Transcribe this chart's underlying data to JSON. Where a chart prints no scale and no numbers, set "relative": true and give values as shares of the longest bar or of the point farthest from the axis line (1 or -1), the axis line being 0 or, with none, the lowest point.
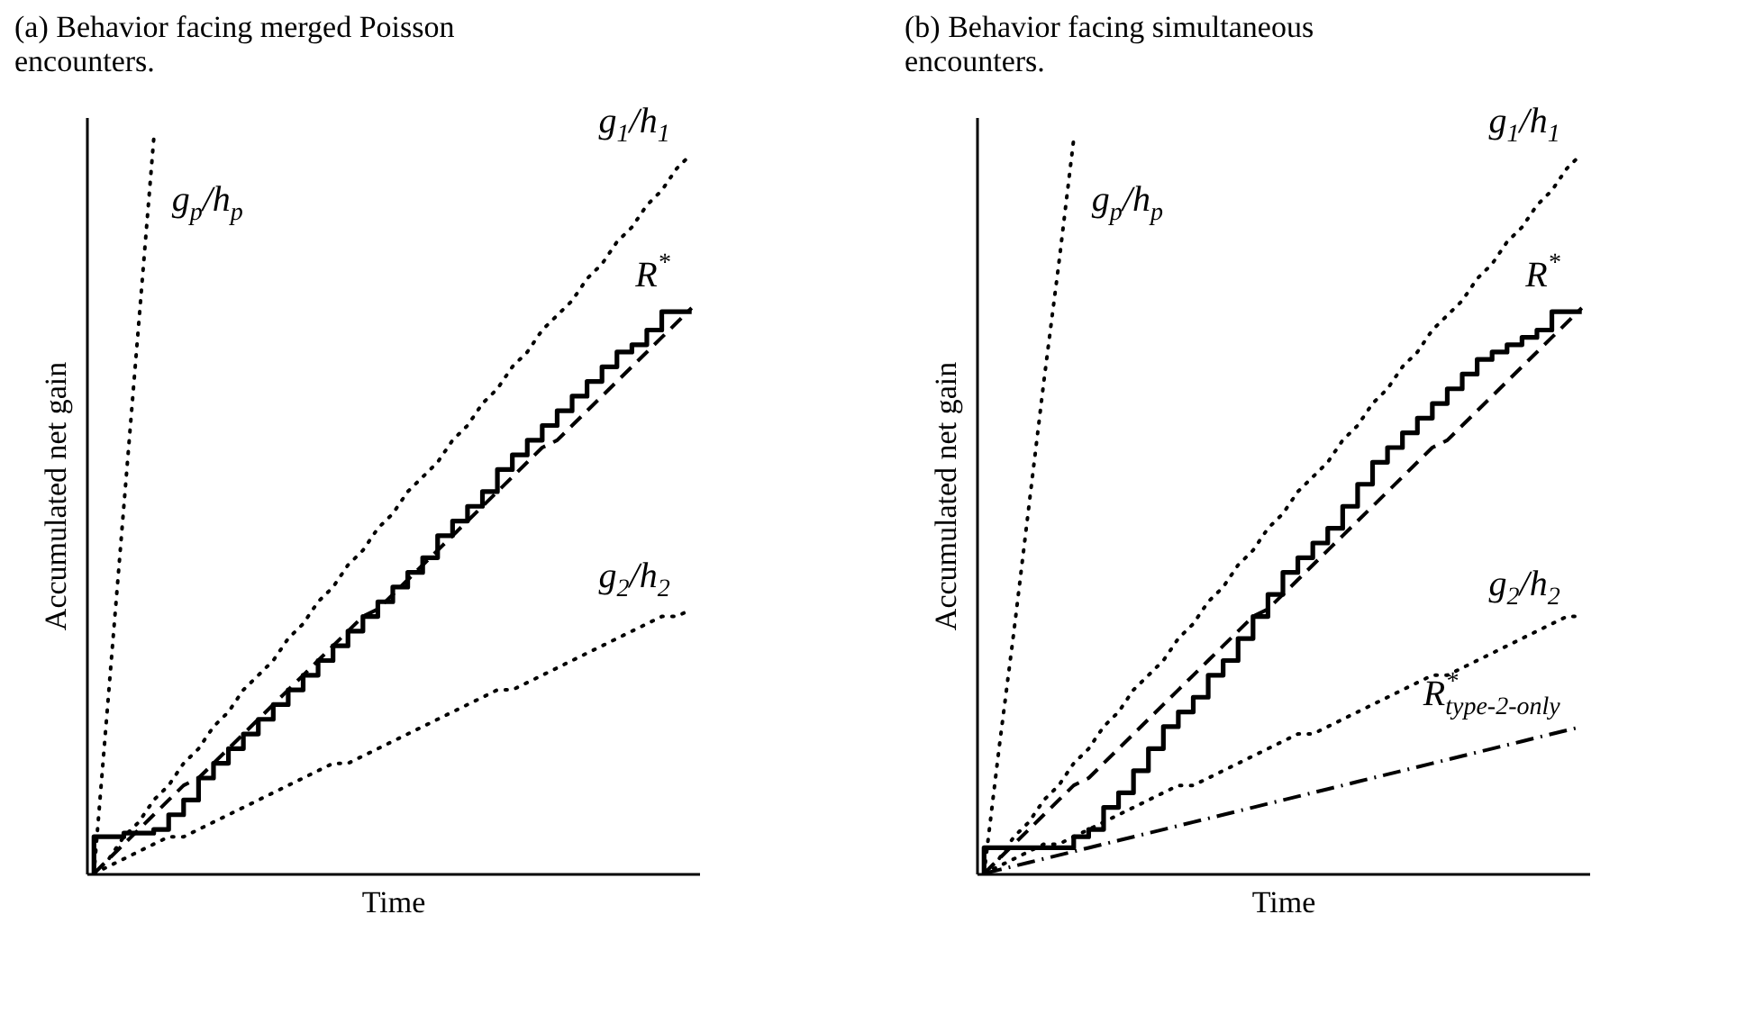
{
  "chart_data": [
    {
      "type": "line",
      "title": "(a) Behavior facing merged Poisson encounters.",
      "xlabel": "Time",
      "ylabel": "Accumulated net gain",
      "relative": true,
      "grid": false,
      "marker": "none",
      "categories": [
        null,
        null,
        null,
        null,
        null,
        null,
        null,
        null,
        null,
        null,
        null,
        null,
        null,
        null,
        null,
        null,
        null,
        null,
        null,
        null,
        null,
        null,
        null,
        null,
        null,
        null,
        null,
        null,
        null,
        null,
        null,
        null,
        null,
        null,
        null,
        null,
        null,
        null,
        null,
        null,
        null
      ],
      "series": [
        {
          "name": "g$_{p}$/h$_{p}$",
          "color": "#000000",
          "line_style": "dotted",
          "values": [
            0,
            0.25,
            0.5,
            0.75,
            1,
            null,
            null,
            null,
            null,
            null,
            null,
            null,
            null,
            null,
            null,
            null,
            null,
            null,
            null,
            null,
            null,
            null,
            null,
            null,
            null,
            null,
            null,
            null,
            null,
            null,
            null,
            null,
            null,
            null,
            null,
            null,
            null,
            null,
            null,
            null,
            null
          ]
        },
        {
          "name": "g$_{1}$/h$_{1}$",
          "color": "#000000",
          "line_style": "dotted",
          "values": [
            0,
            0.02,
            0.05,
            0.07,
            0.1,
            0.12,
            0.15,
            0.17,
            0.2,
            0.22,
            0.25,
            0.27,
            0.29,
            0.32,
            0.34,
            0.37,
            0.39,
            0.42,
            0.44,
            0.47,
            0.49,
            0.52,
            0.54,
            0.56,
            0.59,
            0.61,
            0.64,
            0.66,
            0.69,
            0.71,
            0.74,
            0.76,
            0.78,
            0.81,
            0.83,
            0.86,
            0.88,
            0.91,
            0.93,
            0.96,
            0.98
          ]
        },
        {
          "name": "g$_{2}$/h$_{2}$",
          "color": "#000000",
          "line_style": "dotted",
          "values": [
            0,
            0.01,
            0.02,
            0.03,
            0.04,
            0.05,
            0.05,
            0.06,
            0.07,
            0.08,
            0.09,
            0.1,
            0.11,
            0.12,
            0.13,
            0.14,
            0.15,
            0.15,
            0.16,
            0.17,
            0.18,
            0.19,
            0.2,
            0.21,
            0.22,
            0.23,
            0.24,
            0.25,
            0.25,
            0.26,
            0.27,
            0.28,
            0.29,
            0.3,
            0.31,
            0.32,
            0.33,
            0.34,
            0.35,
            0.35,
            0.36
          ]
        },
        {
          "name": "R$^{*}$",
          "color": "#000000",
          "line_style": "dashed",
          "values": [
            0,
            0.02,
            0.04,
            0.06,
            0.08,
            0.1,
            0.12,
            0.13,
            0.15,
            0.17,
            0.19,
            0.21,
            0.23,
            0.25,
            0.27,
            0.29,
            0.31,
            0.33,
            0.35,
            0.36,
            0.38,
            0.4,
            0.42,
            0.44,
            0.46,
            0.48,
            0.5,
            0.52,
            0.54,
            0.56,
            0.58,
            0.59,
            0.61,
            0.63,
            0.65,
            0.67,
            0.69,
            0.71,
            0.73,
            0.75,
            0.77
          ]
        },
        {
          "type": "step",
          "color": "#000000",
          "line_style": "solid",
          "values": [
            0,
            0.05,
            0.05,
            0.055,
            0.055,
            0.06,
            0.08,
            0.1,
            0.13,
            0.15,
            0.17,
            0.19,
            0.21,
            0.23,
            0.25,
            0.27,
            0.29,
            0.31,
            0.33,
            0.35,
            0.37,
            0.39,
            0.41,
            0.43,
            0.46,
            0.48,
            0.5,
            0.52,
            0.55,
            0.57,
            0.59,
            0.61,
            0.63,
            0.65,
            0.67,
            0.69,
            0.71,
            0.72,
            0.74,
            0.765,
            0.765
          ]
        }
      ]
    },
    {
      "type": "line",
      "title": "(b) Behavior facing simultaneous encounters.",
      "xlabel": "Time",
      "ylabel": "Accumulated net gain",
      "relative": true,
      "grid": false,
      "marker": "none",
      "categories": [
        null,
        null,
        null,
        null,
        null,
        null,
        null,
        null,
        null,
        null,
        null,
        null,
        null,
        null,
        null,
        null,
        null,
        null,
        null,
        null,
        null,
        null,
        null,
        null,
        null,
        null,
        null,
        null,
        null,
        null,
        null,
        null,
        null,
        null,
        null,
        null,
        null,
        null,
        null,
        null,
        null
      ],
      "series": [
        {
          "name": "g$_{p}$/h$_{p}$",
          "color": "#000000",
          "line_style": "dotted",
          "values": [
            0,
            0.17,
            0.33,
            0.5,
            0.67,
            0.83,
            1,
            null,
            null,
            null,
            null,
            null,
            null,
            null,
            null,
            null,
            null,
            null,
            null,
            null,
            null,
            null,
            null,
            null,
            null,
            null,
            null,
            null,
            null,
            null,
            null,
            null,
            null,
            null,
            null,
            null,
            null,
            null,
            null,
            null,
            null
          ]
        },
        {
          "name": "g$_{1}$/h$_{1}$",
          "color": "#000000",
          "line_style": "dotted",
          "values": [
            0,
            0.02,
            0.05,
            0.07,
            0.1,
            0.12,
            0.15,
            0.17,
            0.2,
            0.22,
            0.25,
            0.27,
            0.29,
            0.32,
            0.34,
            0.37,
            0.39,
            0.42,
            0.44,
            0.47,
            0.49,
            0.52,
            0.54,
            0.56,
            0.59,
            0.61,
            0.64,
            0.66,
            0.69,
            0.71,
            0.74,
            0.76,
            0.78,
            0.81,
            0.83,
            0.86,
            0.88,
            0.91,
            0.93,
            0.96,
            0.98
          ]
        },
        {
          "name": "g$_{2}$/h$_{2}$",
          "color": "#000000",
          "line_style": "dotted",
          "values": [
            0,
            0.01,
            0.02,
            0.03,
            0.04,
            0.04,
            0.05,
            0.06,
            0.07,
            0.08,
            0.09,
            0.1,
            0.11,
            0.12,
            0.12,
            0.13,
            0.14,
            0.15,
            0.16,
            0.17,
            0.18,
            0.19,
            0.19,
            0.2,
            0.21,
            0.22,
            0.23,
            0.24,
            0.25,
            0.26,
            0.27,
            0.27,
            0.28,
            0.29,
            0.3,
            0.31,
            0.32,
            0.33,
            0.34,
            0.35,
            0.35
          ]
        },
        {
          "name": "R$^{*}$$_{type-2-only}$",
          "color": "#000000",
          "line_style": "dashdot",
          "values": [
            0,
            0.005,
            0.01,
            0.015,
            0.02,
            0.025,
            0.03,
            0.035,
            0.04,
            0.045,
            0.05,
            0.055,
            0.06,
            0.065,
            0.07,
            0.075,
            0.08,
            0.085,
            0.09,
            0.095,
            0.1,
            0.105,
            0.11,
            0.115,
            0.12,
            0.125,
            0.13,
            0.135,
            0.14,
            0.145,
            0.15,
            0.155,
            0.16,
            0.165,
            0.17,
            0.175,
            0.18,
            0.185,
            0.19,
            0.195,
            0.2
          ]
        },
        {
          "name": "R$^{*}$",
          "color": "#000000",
          "line_style": "dashed",
          "values": [
            0,
            0.02,
            0.04,
            0.06,
            0.08,
            0.1,
            0.12,
            0.13,
            0.15,
            0.17,
            0.19,
            0.21,
            0.23,
            0.25,
            0.27,
            0.29,
            0.31,
            0.33,
            0.35,
            0.36,
            0.38,
            0.4,
            0.42,
            0.44,
            0.46,
            0.48,
            0.5,
            0.52,
            0.54,
            0.56,
            0.58,
            0.59,
            0.61,
            0.63,
            0.65,
            0.67,
            0.69,
            0.71,
            0.73,
            0.75,
            0.77
          ]
        },
        {
          "type": "step",
          "color": "#000000",
          "line_style": "solid",
          "values": [
            0,
            0.035,
            0.035,
            0.035,
            0.035,
            0.035,
            0.035,
            0.05,
            0.06,
            0.09,
            0.11,
            0.14,
            0.17,
            0.2,
            0.22,
            0.24,
            0.27,
            0.29,
            0.32,
            0.35,
            0.38,
            0.41,
            0.43,
            0.45,
            0.47,
            0.5,
            0.53,
            0.56,
            0.58,
            0.6,
            0.62,
            0.64,
            0.66,
            0.68,
            0.7,
            0.71,
            0.72,
            0.73,
            0.74,
            0.765,
            0.765
          ]
        }
      ]
    }
  ]
}
